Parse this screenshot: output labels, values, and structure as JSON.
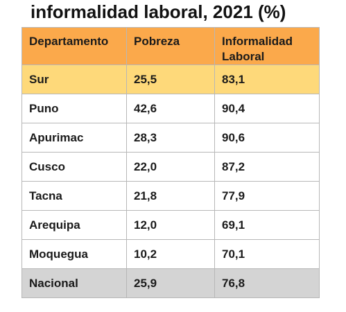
{
  "title": "informalidad laboral, 2021 (%)",
  "table": {
    "headers": [
      "Departamento",
      "Pobreza",
      "Informalidad Laboral"
    ],
    "rows": [
      [
        "Sur",
        "25,5",
        "83,1"
      ],
      [
        "Puno",
        "42,6",
        "90,4"
      ],
      [
        "Apurimac",
        "28,3",
        "90,6"
      ],
      [
        "Cusco",
        "22,0",
        "87,2"
      ],
      [
        "Tacna",
        "21,8",
        "77,9"
      ],
      [
        "Arequipa",
        "12,0",
        "69,1"
      ],
      [
        "Moquegua",
        "10,2",
        "70,1"
      ],
      [
        "Nacional",
        "25,9",
        "76,8"
      ]
    ]
  },
  "colors": {
    "header_bg": "#fba94b",
    "highlight_row_bg": "#fed97a",
    "total_row_bg": "#d4d4d4",
    "border": "#b7b7b7"
  }
}
